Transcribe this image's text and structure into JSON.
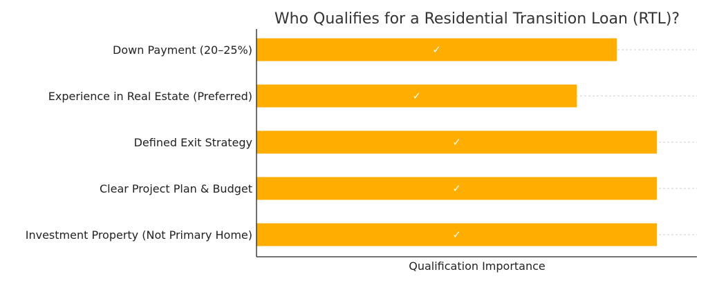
{
  "chart_data": {
    "type": "bar",
    "orientation": "horizontal",
    "title": "Who Qualifies for a Residential Transition Loan (RTL)?",
    "xlabel": "Qualification Importance",
    "ylabel": "",
    "categories": [
      "Down Payment (20–25%)",
      "Experience in Real Estate (Preferred)",
      "Defined Exit Strategy",
      "Clear Project Plan & Budget",
      "Investment Property (Not Primary Home)"
    ],
    "values": [
      9,
      8,
      10,
      10,
      10
    ],
    "bar_labels": [
      "✓",
      "✓",
      "✓",
      "✓",
      "✓"
    ],
    "xlim": [
      0,
      11
    ],
    "grid": true,
    "bar_color": "#FFAE00",
    "legend": "none"
  }
}
